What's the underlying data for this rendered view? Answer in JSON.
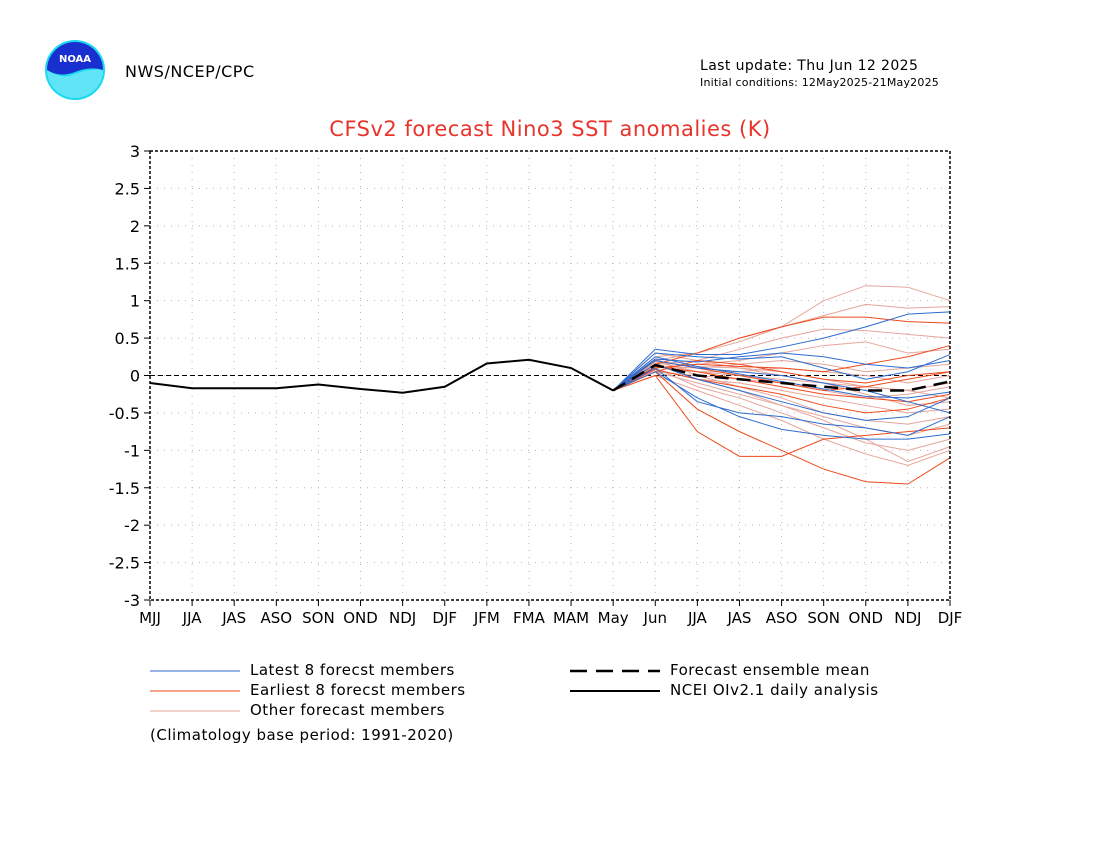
{
  "header": {
    "agency": "NWS/NCEP/CPC",
    "logo_text": "NOAA",
    "last_update": "Last update: Thu Jun 12 2025",
    "initial_conditions": "Initial conditions: 12May2025-21May2025"
  },
  "legend": {
    "latest": "Latest 8 forecst members",
    "earliest": "Earliest 8 forecst members",
    "other": "Other forecast members",
    "mean": "Forecast ensemble mean",
    "obs": "NCEI OIv2.1 daily analysis",
    "climatology": "(Climatology base period: 1991-2020)"
  },
  "colors": {
    "title": "#e8342a",
    "latest": "#2d6cd0",
    "earliest": "#ee4a1c",
    "other": "#e6a59a",
    "obs": "#000000",
    "mean": "#000000",
    "logo_blue": "#1a2fd0",
    "logo_cyan": "#1ad8f0"
  },
  "chart_data": {
    "type": "line",
    "title": "CFSv2 forecast Nino3 SST anomalies (K)",
    "xlabel": "",
    "ylabel": "",
    "categories": [
      "MJJ",
      "JJA",
      "JAS",
      "ASO",
      "SON",
      "OND",
      "NDJ",
      "DJF",
      "JFM",
      "FMA",
      "MAM",
      "May",
      "Jun",
      "JJA",
      "JAS",
      "ASO",
      "SON",
      "OND",
      "NDJ",
      "DJF"
    ],
    "ylim": [
      -3,
      3
    ],
    "yticks": [
      "3",
      "2.5",
      "2",
      "1.5",
      "1",
      "0.5",
      "0",
      "-0.5",
      "-1",
      "-1.5",
      "-2",
      "-2.5",
      "-3"
    ],
    "grid": true,
    "zero_line": "dashed",
    "observed": {
      "x_index": [
        0,
        1,
        2,
        3,
        4,
        5,
        6,
        7,
        8,
        9,
        10,
        11
      ],
      "values": [
        -0.1,
        -0.17,
        -0.17,
        -0.17,
        -0.12,
        -0.18,
        -0.23,
        -0.15,
        0.16,
        0.21,
        0.1,
        -0.2
      ]
    },
    "ensemble_mean": {
      "x_index": [
        11,
        12,
        13,
        14,
        15,
        16,
        17,
        18,
        19
      ],
      "values": [
        -0.2,
        0.14,
        0.0,
        -0.05,
        -0.1,
        -0.15,
        -0.2,
        -0.2,
        -0.08
      ]
    },
    "forecast_x_index": [
      11,
      12,
      13,
      14,
      15,
      16,
      17,
      18,
      19
    ],
    "latest_members": [
      [
        -0.2,
        0.35,
        0.28,
        0.28,
        0.38,
        0.5,
        0.65,
        0.82,
        0.85
      ],
      [
        -0.2,
        0.3,
        0.25,
        0.22,
        0.25,
        0.1,
        -0.05,
        0.05,
        0.28
      ],
      [
        -0.2,
        0.2,
        0.1,
        0.05,
        0.0,
        -0.1,
        -0.2,
        -0.35,
        -0.5
      ],
      [
        -0.2,
        0.15,
        -0.05,
        -0.2,
        -0.35,
        -0.5,
        -0.6,
        -0.55,
        -0.3
      ],
      [
        -0.2,
        0.1,
        -0.35,
        -0.5,
        -0.55,
        -0.65,
        -0.7,
        -0.8,
        -0.55
      ],
      [
        -0.2,
        0.05,
        -0.3,
        -0.55,
        -0.72,
        -0.8,
        -0.85,
        -0.85,
        -0.78
      ],
      [
        -0.2,
        0.25,
        0.12,
        0.02,
        -0.08,
        -0.18,
        -0.28,
        -0.3,
        -0.22
      ],
      [
        -0.2,
        0.22,
        0.18,
        0.25,
        0.3,
        0.25,
        0.15,
        0.1,
        0.2
      ]
    ],
    "earliest_members": [
      [
        -0.2,
        0.15,
        0.3,
        0.5,
        0.65,
        0.78,
        0.78,
        0.72,
        0.7
      ],
      [
        -0.2,
        0.1,
        0.15,
        0.12,
        0.1,
        0.05,
        0.15,
        0.25,
        0.4
      ],
      [
        -0.2,
        0.05,
        0.2,
        0.15,
        0.05,
        -0.05,
        -0.1,
        0.0,
        0.05
      ],
      [
        -0.2,
        0.08,
        -0.05,
        -0.15,
        -0.25,
        -0.4,
        -0.5,
        -0.45,
        -0.3
      ],
      [
        -0.2,
        0.0,
        -0.75,
        -1.08,
        -1.08,
        -0.85,
        -0.8,
        -0.75,
        -0.7
      ],
      [
        -0.2,
        0.05,
        -0.45,
        -0.75,
        -1.0,
        -1.25,
        -1.42,
        -1.45,
        -1.1
      ],
      [
        -0.2,
        0.12,
        0.05,
        -0.05,
        -0.15,
        -0.25,
        -0.3,
        -0.35,
        -0.25
      ],
      [
        -0.2,
        0.2,
        0.1,
        0.0,
        -0.1,
        -0.2,
        -0.15,
        -0.05,
        0.05
      ]
    ],
    "other_members": [
      [
        -0.2,
        0.25,
        0.3,
        0.45,
        0.65,
        1.0,
        1.2,
        1.18,
        1.0
      ],
      [
        -0.2,
        0.2,
        0.3,
        0.5,
        0.65,
        0.8,
        0.95,
        0.9,
        0.92
      ],
      [
        -0.2,
        0.15,
        0.2,
        0.35,
        0.5,
        0.62,
        0.6,
        0.55,
        0.5
      ],
      [
        -0.2,
        0.1,
        0.15,
        0.2,
        0.3,
        0.4,
        0.45,
        0.3,
        0.35
      ],
      [
        -0.2,
        0.12,
        0.1,
        0.15,
        0.2,
        0.15,
        0.05,
        0.1,
        0.15
      ],
      [
        -0.2,
        0.18,
        0.05,
        0.0,
        -0.05,
        -0.1,
        -0.15,
        -0.2,
        -0.1
      ],
      [
        -0.2,
        0.08,
        -0.05,
        -0.1,
        -0.2,
        -0.3,
        -0.4,
        -0.5,
        -0.45
      ],
      [
        -0.2,
        0.05,
        -0.1,
        -0.25,
        -0.4,
        -0.55,
        -0.7,
        -0.8,
        -0.65
      ],
      [
        -0.2,
        0.1,
        -0.15,
        -0.3,
        -0.5,
        -0.7,
        -0.9,
        -1.0,
        -0.85
      ],
      [
        -0.2,
        0.0,
        -0.2,
        -0.4,
        -0.6,
        -0.85,
        -1.05,
        -1.2,
        -1.0
      ],
      [
        -0.2,
        0.15,
        -0.05,
        -0.2,
        -0.4,
        -0.6,
        -0.85,
        -1.15,
        -0.95
      ],
      [
        -0.2,
        0.22,
        0.0,
        -0.15,
        -0.3,
        -0.5,
        -0.6,
        -0.65,
        -0.55
      ],
      [
        -0.2,
        0.3,
        0.2,
        0.1,
        0.0,
        -0.1,
        -0.25,
        -0.4,
        -0.35
      ],
      [
        -0.2,
        0.05,
        0.0,
        -0.05,
        -0.1,
        -0.2,
        -0.3,
        -0.25,
        -0.15
      ],
      [
        -0.2,
        0.12,
        0.05,
        0.05,
        0.1,
        0.05,
        0.0,
        -0.1,
        0.0
      ],
      [
        -0.2,
        0.18,
        0.12,
        0.1,
        0.05,
        -0.05,
        -0.15,
        -0.2,
        -0.3
      ]
    ]
  }
}
